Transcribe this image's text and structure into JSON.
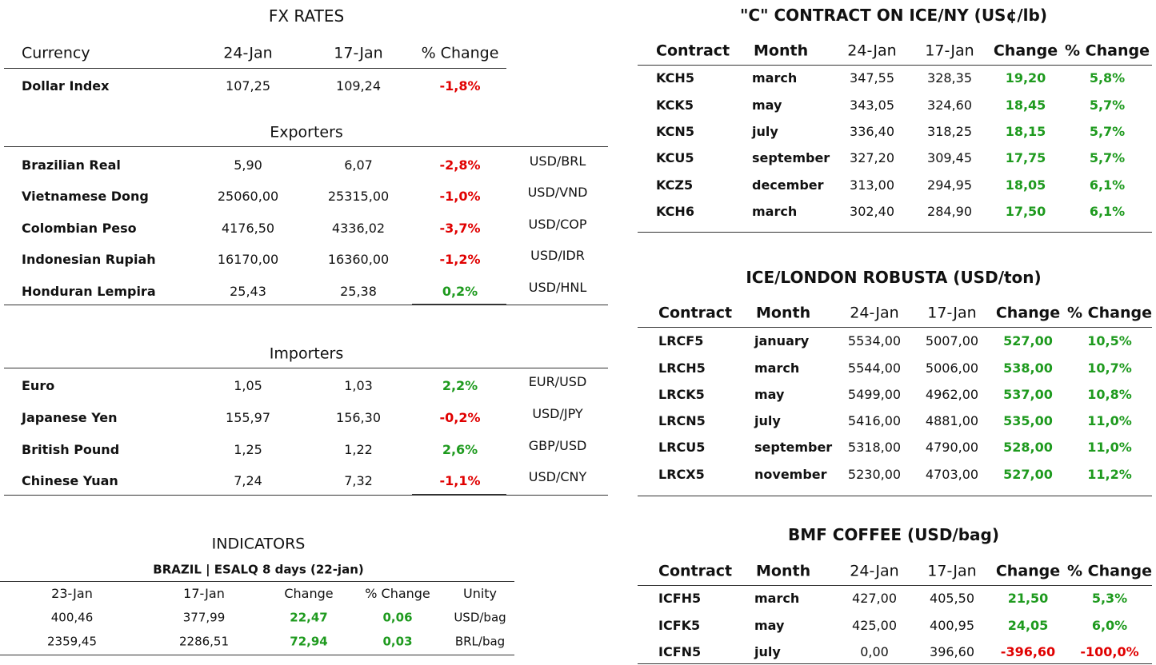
{
  "fx_rates": {
    "title": "FX RATES",
    "header": [
      "Currency",
      "24-Jan",
      "17-Jan",
      "% Change"
    ],
    "rows": [
      [
        "Dollar Index",
        "107,25",
        "109,24",
        "-1,8%"
      ]
    ]
  },
  "exporters": {
    "title": "Exporters",
    "rows": [
      [
        "Brazilian Real",
        "5,90",
        "6,07",
        "-2,8%",
        "USD/BRL"
      ],
      [
        "Vietnamese Dong",
        "25060,00",
        "25315,00",
        "-1,0%",
        "USD/VND"
      ],
      [
        "Colombian Peso",
        "4176,50",
        "4336,02",
        "-3,7%",
        "USD/COP"
      ],
      [
        "Indonesian Rupiah",
        "16170,00",
        "16360,00",
        "-1,2%",
        "USD/IDR"
      ],
      [
        "Honduran Lempira",
        "25,43",
        "25,38",
        "0,2%",
        "USD/HNL"
      ]
    ]
  },
  "importers": {
    "title": "Importers",
    "rows": [
      [
        "Euro",
        "1,05",
        "1,03",
        "2,2%",
        "EUR/USD"
      ],
      [
        "Japanese Yen",
        "155,97",
        "156,30",
        "-0,2%",
        "USD/JPY"
      ],
      [
        "British Pound",
        "1,25",
        "1,22",
        "2,6%",
        "GBP/USD"
      ],
      [
        "Chinese Yuan",
        "7,24",
        "7,32",
        "-1,1%",
        "USD/CNY"
      ]
    ]
  },
  "indicators": {
    "title": "INDICATORS",
    "subtitle": "BRAZIL | ESALQ 8 days (22-jan)",
    "header": [
      "23-Jan",
      "17-Jan",
      "Change",
      "% Change",
      "Unity"
    ],
    "rows": [
      [
        "400,46",
        "377,99",
        "22,47",
        "0,06",
        "USD/bag"
      ],
      [
        "2359,45",
        "2286,51",
        "72,94",
        "0,03",
        "BRL/bag"
      ]
    ]
  },
  "c_contract": {
    "title": "\"C\" CONTRACT ON ICE/NY (US¢/lb)",
    "header": [
      "Contract",
      "Month",
      "24-Jan",
      "17-Jan",
      "Change",
      "% Change"
    ],
    "rows": [
      [
        "KCH5",
        "march",
        "347,55",
        "328,35",
        "19,20",
        "5,8%"
      ],
      [
        "KCK5",
        "may",
        "343,05",
        "324,60",
        "18,45",
        "5,7%"
      ],
      [
        "KCN5",
        "july",
        "336,40",
        "318,25",
        "18,15",
        "5,7%"
      ],
      [
        "KCU5",
        "september",
        "327,20",
        "309,45",
        "17,75",
        "5,7%"
      ],
      [
        "KCZ5",
        "december",
        "313,00",
        "294,95",
        "18,05",
        "6,1%"
      ],
      [
        "KCH6",
        "march",
        "302,40",
        "284,90",
        "17,50",
        "6,1%"
      ]
    ]
  },
  "robusta": {
    "title": "ICE/LONDON ROBUSTA (USD/ton)",
    "header": [
      "Contract",
      "Month",
      "24-Jan",
      "17-Jan",
      "Change",
      "% Change"
    ],
    "rows": [
      [
        "LRCF5",
        "january",
        "5534,00",
        "5007,00",
        "527,00",
        "10,5%"
      ],
      [
        "LRCH5",
        "march",
        "5544,00",
        "5006,00",
        "538,00",
        "10,7%"
      ],
      [
        "LRCK5",
        "may",
        "5499,00",
        "4962,00",
        "537,00",
        "10,8%"
      ],
      [
        "LRCN5",
        "july",
        "5416,00",
        "4881,00",
        "535,00",
        "11,0%"
      ],
      [
        "LRCU5",
        "september",
        "5318,00",
        "4790,00",
        "528,00",
        "11,0%"
      ],
      [
        "LRCX5",
        "november",
        "5230,00",
        "4703,00",
        "527,00",
        "11,2%"
      ]
    ]
  },
  "bmf_coffee": {
    "title": "BMF COFFEE (USD/bag)",
    "header": [
      "Contract",
      "Month",
      "24-Jan",
      "17-Jan",
      "Change",
      "% Change"
    ],
    "rows": [
      [
        "ICFH5",
        "march",
        "427,00",
        "405,50",
        "21,50",
        "5,3%"
      ],
      [
        "ICFK5",
        "may",
        "425,00",
        "400,95",
        "24,05",
        "6,0%"
      ],
      [
        "ICFN5",
        "july",
        "0,00",
        "396,60",
        "-396,60",
        "-100,0%"
      ]
    ]
  }
}
